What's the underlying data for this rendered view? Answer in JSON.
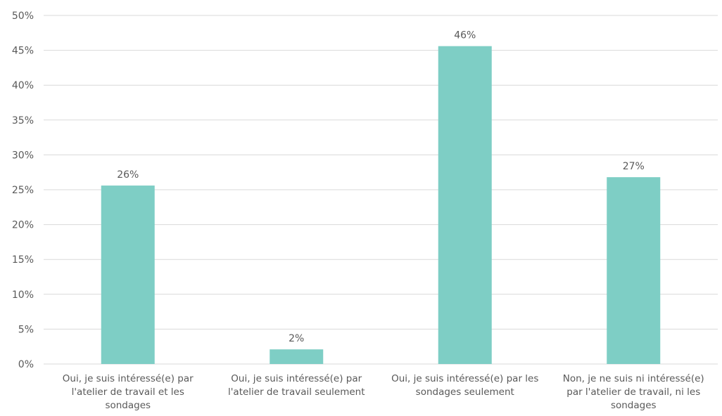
{
  "chart_data": {
    "type": "bar",
    "categories": [
      [
        "Oui, je suis intéressé(e) par",
        "l'atelier de travail et les",
        "sondages"
      ],
      [
        "Oui, je suis intéressé(e) par",
        "l'atelier de travail seulement"
      ],
      [
        "Oui, je suis intéressé(e) par les",
        "sondages seulement"
      ],
      [
        "Non, je ne suis ni intéressé(e)",
        "par l'atelier de travail, ni les",
        "sondages"
      ]
    ],
    "values": [
      25.6,
      2.1,
      45.6,
      26.8
    ],
    "data_labels": [
      "26%",
      "2%",
      "46%",
      "27%"
    ],
    "yticks": [
      0,
      5,
      10,
      15,
      20,
      25,
      30,
      35,
      40,
      45,
      50
    ],
    "ytick_labels": [
      "0%",
      "5%",
      "10%",
      "15%",
      "20%",
      "25%",
      "30%",
      "35%",
      "40%",
      "45%",
      "50%"
    ],
    "ylim": [
      0,
      50
    ],
    "title": "",
    "xlabel": "",
    "ylabel": "",
    "grid": true,
    "legend": "none",
    "colors": {
      "bar": "#7ECEC5",
      "grid": "#D9D9D9",
      "text": "#595959"
    }
  }
}
